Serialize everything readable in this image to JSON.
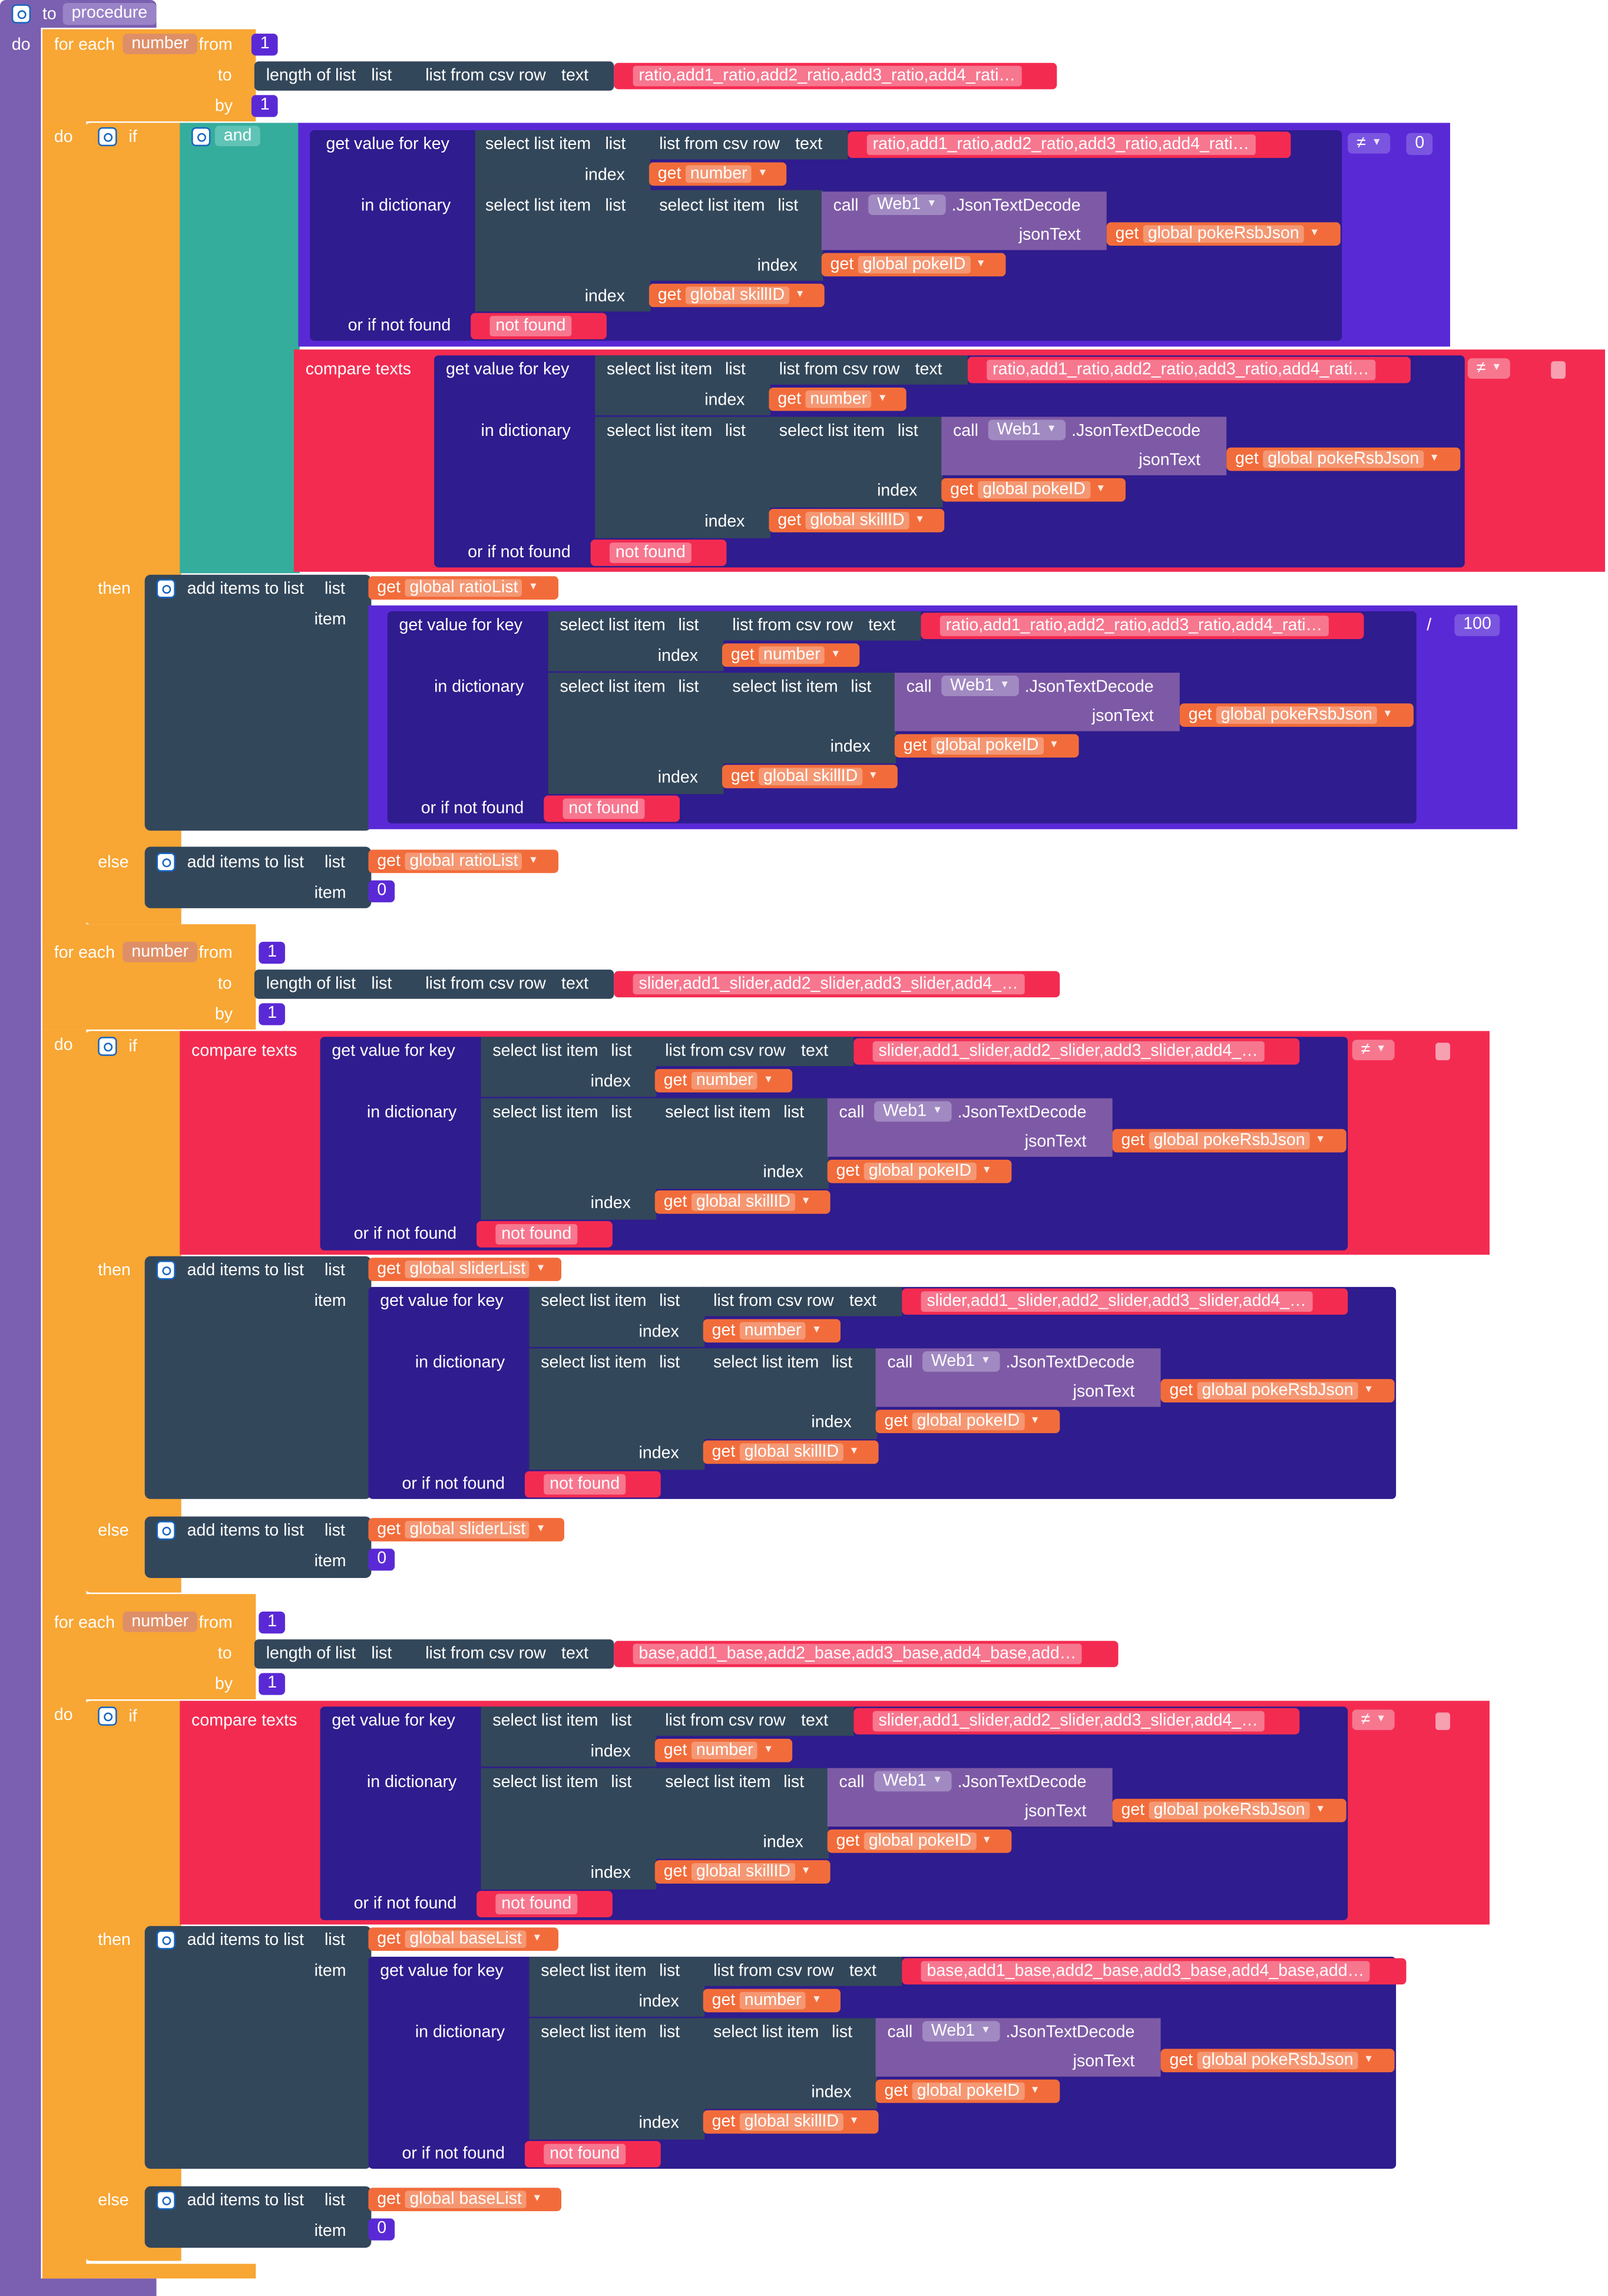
{
  "colors": {
    "procedure": "#7b5fb0",
    "control": "#f8a634",
    "list": "#33475a",
    "dict": "#2f1c8e",
    "math": "#5a29d6",
    "logic": "#35ad9d",
    "text": "#f42b51",
    "variable": "#f26c3b",
    "component": "#7e5aa6",
    "loop_var": "#df8f68"
  },
  "procedure": {
    "to_label": "to",
    "name": "procedure",
    "do_label": "do",
    "gear_icon": "gear-icon"
  },
  "labels": {
    "for_each": "for each",
    "from": "from",
    "to": "to",
    "by": "by",
    "do": "do",
    "if": "if",
    "then": "then",
    "else": "else",
    "and": "and",
    "length_of_list": "length of list",
    "list": "list",
    "list_from_csv_row": "list from csv row",
    "text": "text",
    "get_value_for_key": "get value for key",
    "in_dictionary": "in dictionary",
    "or_if_not_found": "or if not found",
    "select_list_item": "select list item",
    "index": "index",
    "call": "call",
    "json_text_decode": ".JsonTextDecode",
    "json_text": "jsonText",
    "get": "get",
    "compare_texts": "compare texts",
    "add_items_to_list": "add items to list",
    "item": "item",
    "neq": "≠",
    "div": "/",
    "open_quote": "“",
    "close_quote": "”"
  },
  "values": {
    "loop_var": "number",
    "one": "1",
    "zero": "0",
    "hundred": "100",
    "component": "Web1",
    "not_found": "not found",
    "empty": "",
    "var_number": "number",
    "var_pokeRsbJson": "global pokeRsbJson",
    "var_pokeID": "global pokeID",
    "var_skillID": "global skillID",
    "var_ratioList": "global ratioList",
    "var_sliderList": "global sliderList",
    "var_baseList": "global baseList"
  },
  "csv": {
    "ratio": "ratio,add1_ratio,add2_ratio,add3_ratio,add4_rati…",
    "slider": "slider,add1_slider,add2_slider,add3_slider,add4_…",
    "base": "base,add1_base,add2_base,add3_base,add4_base,add…"
  }
}
